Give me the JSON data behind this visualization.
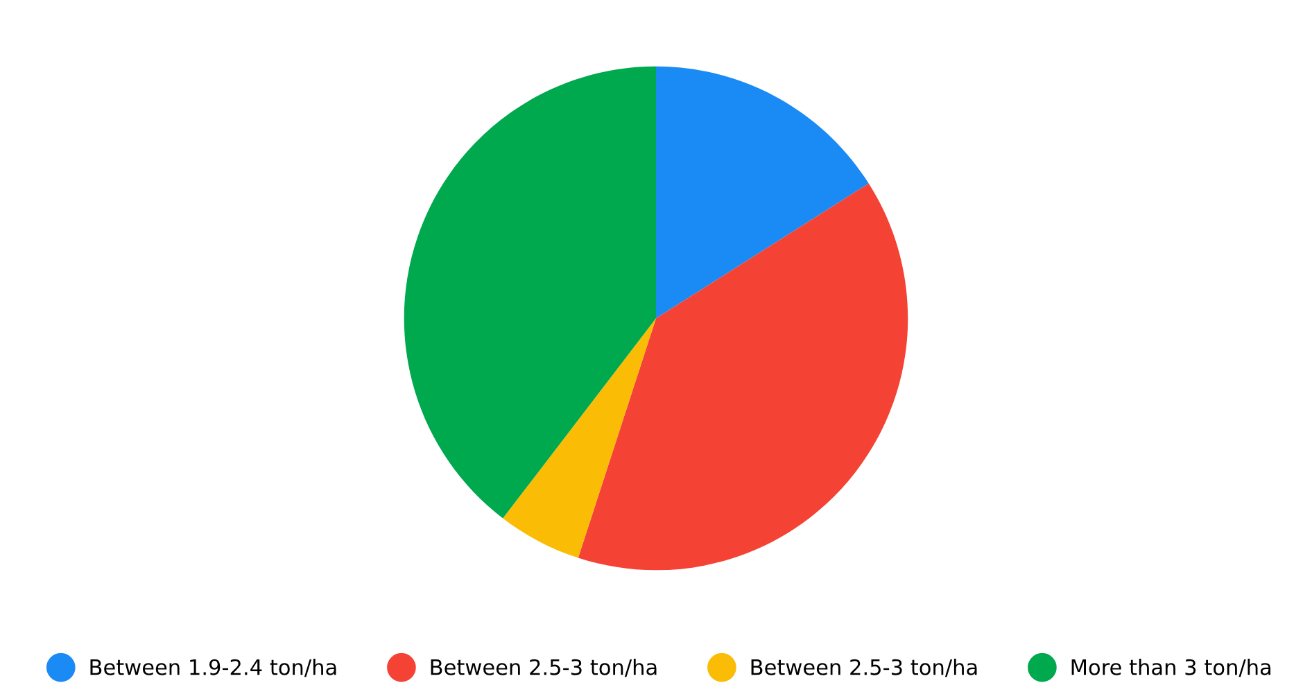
{
  "chart_data": {
    "type": "pie",
    "categories": [
      "Between 1.9-2.4 ton/ha",
      "Between 2.5-3 ton/ha",
      "Between 2.5-3 ton/ha",
      "More than 3 ton/ha"
    ],
    "values": [
      16.0,
      39.0,
      5.4,
      39.6
    ],
    "colors": [
      "#1a8af5",
      "#f44335",
      "#fbbc05",
      "#00a84e"
    ],
    "legend": "bottom"
  }
}
